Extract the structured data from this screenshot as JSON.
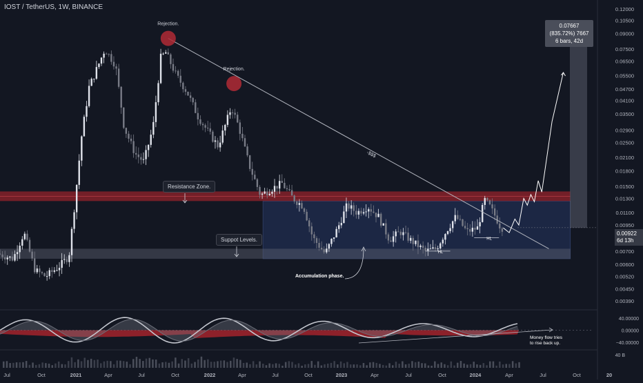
{
  "header": {
    "title": "IOST / TetherUS, 1W, BINANCE"
  },
  "price_axis": [
    "0.12000",
    "0.10500",
    "0.09000",
    "0.07500",
    "0.06500",
    "0.05500",
    "0.04700",
    "0.04100",
    "0.03500",
    "0.02900",
    "0.02500",
    "0.02100",
    "0.01800",
    "0.01500",
    "0.01300",
    "0.01100",
    "0.00950",
    "0.00800",
    "0.00700",
    "0.00600",
    "0.00520",
    "0.00450",
    "0.00390"
  ],
  "indicator_axis": [
    "40.00000",
    "0.00000",
    "−40.00000"
  ],
  "volume_axis": "40 B",
  "time_axis": [
    "Jul",
    "Oct",
    "2021",
    "Apr",
    "Jul",
    "Oct",
    "2022",
    "Apr",
    "Jul",
    "Oct",
    "2023",
    "Apr",
    "Jul",
    "Oct",
    "2024",
    "Apr",
    "Jul",
    "Oct",
    "20"
  ],
  "current_price": {
    "value": "0.00922",
    "countdown": "6d 13h"
  },
  "measure": {
    "line1": "0.07667 (835.72%) 7667",
    "line2": "6 bars, 42d"
  },
  "annotations": {
    "rejection1": "Rejection.",
    "rejection2": "Rejection.",
    "resistance": "Resistance Zone.",
    "support": "Suppot Levels.",
    "accumulation": "Accumulation phase.",
    "trend_label": "-$$$",
    "hl1": "HL",
    "hl2": "HL",
    "money_flow": "Money flow tries to rise back up."
  },
  "colors": {
    "background": "#131722",
    "up": "#e0e3eb",
    "down": "#787b86",
    "resistance": "#c2272d",
    "support": "#5d6170",
    "accumulation": "#1e2a4a",
    "rejection": "#b22a35"
  },
  "chart_data": {
    "type": "candlestick",
    "title": "IOST / TetherUS, 1W, BINANCE",
    "y_scale": "log",
    "ylim": [
      0.0036,
      0.125
    ],
    "xlim": [
      "2020-06-01",
      "2025-01-01"
    ],
    "resistance_zone": [
      0.0126,
      0.0141
    ],
    "support_zone": [
      0.0064,
      0.0072
    ],
    "price_path": [
      {
        "date": "2020-06-01",
        "price": 0.0068
      },
      {
        "date": "2020-07-15",
        "price": 0.0064
      },
      {
        "date": "2020-08-15",
        "price": 0.0087
      },
      {
        "date": "2020-09-15",
        "price": 0.0056
      },
      {
        "date": "2020-10-15",
        "price": 0.0052
      },
      {
        "date": "2020-11-20",
        "price": 0.0058
      },
      {
        "date": "2020-12-20",
        "price": 0.0066
      },
      {
        "date": "2021-01-05",
        "price": 0.012
      },
      {
        "date": "2021-01-25",
        "price": 0.027
      },
      {
        "date": "2021-02-15",
        "price": 0.048
      },
      {
        "date": "2021-03-01",
        "price": 0.055
      },
      {
        "date": "2021-04-01",
        "price": 0.075
      },
      {
        "date": "2021-05-01",
        "price": 0.062
      },
      {
        "date": "2021-05-25",
        "price": 0.03
      },
      {
        "date": "2021-06-25",
        "price": 0.022
      },
      {
        "date": "2021-07-20",
        "price": 0.02
      },
      {
        "date": "2021-08-15",
        "price": 0.03
      },
      {
        "date": "2021-09-06",
        "price": 0.068
      },
      {
        "date": "2021-09-20",
        "price": 0.072
      },
      {
        "date": "2021-10-20",
        "price": 0.055
      },
      {
        "date": "2021-11-20",
        "price": 0.045
      },
      {
        "date": "2021-12-20",
        "price": 0.034
      },
      {
        "date": "2022-01-20",
        "price": 0.028
      },
      {
        "date": "2022-02-15",
        "price": 0.024
      },
      {
        "date": "2022-03-25",
        "price": 0.038
      },
      {
        "date": "2022-04-15",
        "price": 0.03
      },
      {
        "date": "2022-05-15",
        "price": 0.019
      },
      {
        "date": "2022-06-15",
        "price": 0.0135
      },
      {
        "date": "2022-07-15",
        "price": 0.0145
      },
      {
        "date": "2022-08-15",
        "price": 0.0155
      },
      {
        "date": "2022-09-15",
        "price": 0.013
      },
      {
        "date": "2022-10-15",
        "price": 0.0118
      },
      {
        "date": "2022-11-10",
        "price": 0.0082
      },
      {
        "date": "2022-12-15",
        "price": 0.0068
      },
      {
        "date": "2023-01-20",
        "price": 0.0092
      },
      {
        "date": "2023-02-15",
        "price": 0.012
      },
      {
        "date": "2023-03-15",
        "price": 0.011
      },
      {
        "date": "2023-04-15",
        "price": 0.0118
      },
      {
        "date": "2023-05-15",
        "price": 0.0105
      },
      {
        "date": "2023-06-15",
        "price": 0.008
      },
      {
        "date": "2023-07-15",
        "price": 0.0088
      },
      {
        "date": "2023-08-20",
        "price": 0.0078
      },
      {
        "date": "2023-09-25",
        "price": 0.007
      },
      {
        "date": "2023-10-25",
        "price": 0.0072
      },
      {
        "date": "2023-11-25",
        "price": 0.009
      },
      {
        "date": "2023-12-20",
        "price": 0.0105
      },
      {
        "date": "2024-01-20",
        "price": 0.0088
      },
      {
        "date": "2024-02-20",
        "price": 0.0092
      },
      {
        "date": "2024-03-10",
        "price": 0.0128
      },
      {
        "date": "2024-03-25",
        "price": 0.0118
      },
      {
        "date": "2024-04-10",
        "price": 0.0105
      },
      {
        "date": "2024-04-25",
        "price": 0.0092
      }
    ],
    "projection": [
      {
        "date": "2024-04-25",
        "price": 0.0092
      },
      {
        "date": "2024-05-12",
        "price": 0.0087
      },
      {
        "date": "2024-05-28",
        "price": 0.0102
      },
      {
        "date": "2024-06-08",
        "price": 0.0095
      },
      {
        "date": "2024-06-22",
        "price": 0.013
      },
      {
        "date": "2024-07-02",
        "price": 0.012
      },
      {
        "date": "2024-07-12",
        "price": 0.0136
      },
      {
        "date": "2024-07-22",
        "price": 0.0125
      },
      {
        "date": "2024-08-02",
        "price": 0.016
      },
      {
        "date": "2024-08-12",
        "price": 0.014
      },
      {
        "date": "2024-09-10",
        "price": 0.032
      },
      {
        "date": "2024-10-12",
        "price": 0.057
      }
    ],
    "measure_range": {
      "from": 0.0092,
      "to": 0.0859,
      "bars": 6
    },
    "resistance_trend": [
      {
        "date": "2021-09-20",
        "price": 0.085
      },
      {
        "date": "2024-09-01",
        "price": 0.0072
      }
    ],
    "rejections": [
      {
        "date": "2021-09-20",
        "price": 0.085
      },
      {
        "date": "2022-03-25",
        "price": 0.05
      }
    ],
    "accumulation_box": {
      "from": "2022-06-15",
      "to": "2024-11-01",
      "low": 0.0064,
      "high": 0.0126
    },
    "hl_points": [
      {
        "date": "2023-10-15",
        "price": 0.007
      },
      {
        "date": "2024-03-01",
        "price": 0.0082
      }
    ],
    "oscillator_range": [
      -60,
      60
    ],
    "volume_unit": "B"
  }
}
